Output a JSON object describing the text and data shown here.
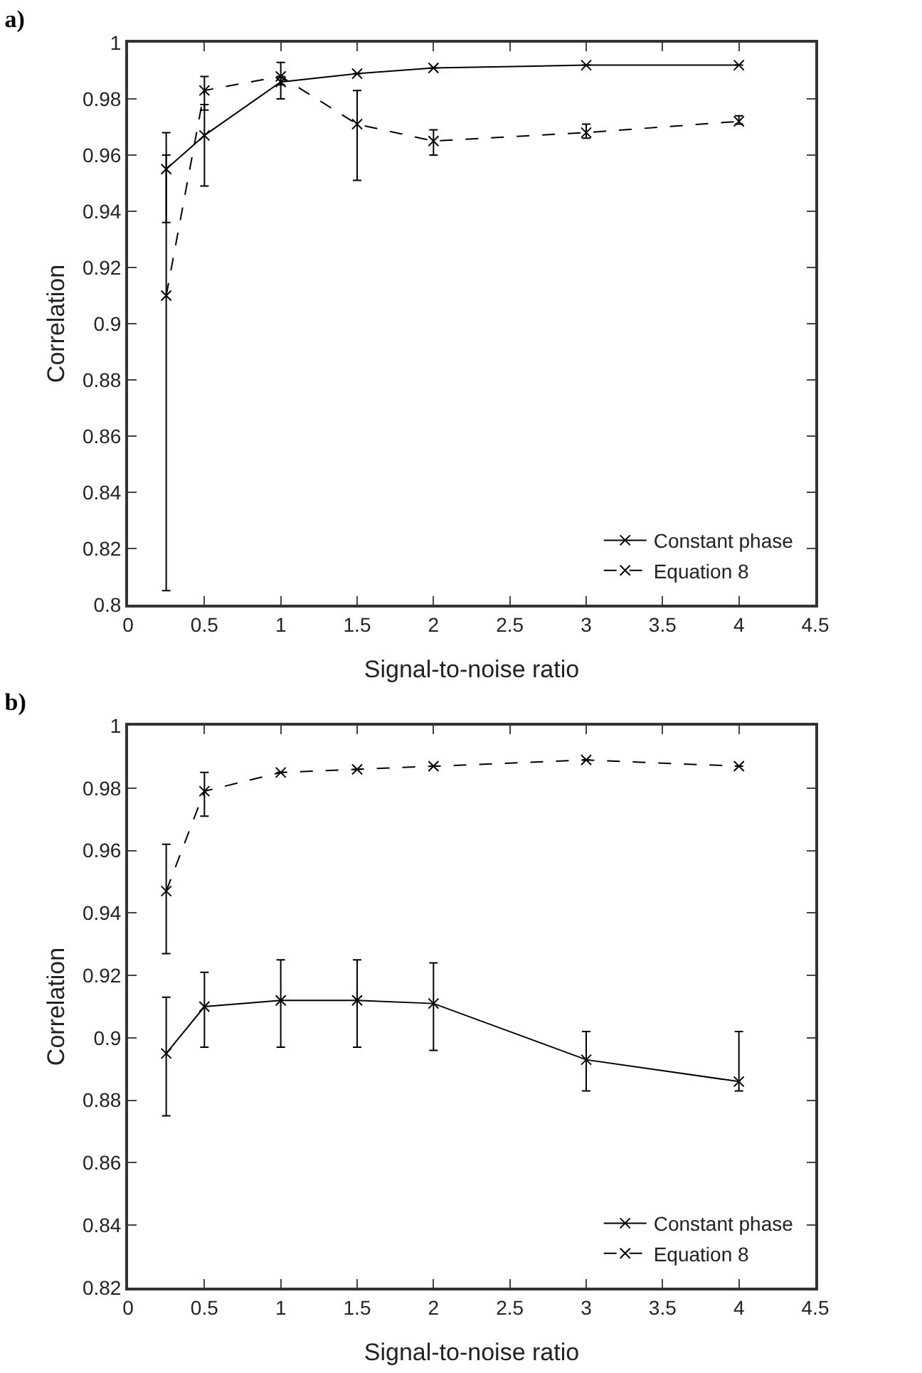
{
  "chart_data": [
    {
      "type": "line",
      "title": "a)",
      "xlabel": "Signal-to-noise ratio",
      "ylabel": "Correlation",
      "xlim": [
        0,
        4.5
      ],
      "xticks": [
        0,
        0.5,
        1,
        1.5,
        2,
        2.5,
        3,
        3.5,
        4,
        4.5
      ],
      "ylim": [
        0.8,
        1
      ],
      "yticks": [
        0.8,
        0.82,
        0.84,
        0.86,
        0.88,
        0.9,
        0.92,
        0.94,
        0.96,
        0.98,
        1
      ],
      "grid": false,
      "legend": "bottom right",
      "x": [
        0.25,
        0.5,
        1,
        1.5,
        2,
        3,
        4
      ],
      "series": [
        {
          "name": "Constant phase",
          "color": "#000000",
          "line_style": "solid",
          "marker": "cross",
          "values": [
            0.955,
            0.967,
            0.986,
            0.989,
            0.991,
            0.992,
            0.992
          ],
          "errors": [
            [
              0.936,
              0.968
            ],
            [
              0.949,
              0.978
            ],
            [
              0.985,
              0.988
            ],
            null,
            null,
            null,
            null
          ]
        },
        {
          "name": "Equation 8",
          "color": "#000000",
          "line_style": "dashed",
          "marker": "cross",
          "values": [
            0.91,
            0.983,
            0.988,
            0.971,
            0.965,
            0.968,
            0.972
          ],
          "errors": [
            [
              0.805,
              0.96
            ],
            [
              0.976,
              0.988
            ],
            [
              0.98,
              0.993
            ],
            [
              0.951,
              0.983
            ],
            [
              0.96,
              0.969
            ],
            [
              0.966,
              0.971
            ],
            [
              0.971,
              0.974
            ]
          ]
        }
      ]
    },
    {
      "type": "line",
      "title": "b)",
      "xlabel": "Signal-to-noise ratio",
      "ylabel": "Correlation",
      "xlim": [
        0,
        4.5
      ],
      "xticks": [
        0,
        0.5,
        1,
        1.5,
        2,
        2.5,
        3,
        3.5,
        4,
        4.5
      ],
      "ylim": [
        0.82,
        1
      ],
      "yticks": [
        0.82,
        0.84,
        0.86,
        0.88,
        0.9,
        0.92,
        0.94,
        0.96,
        0.98,
        1
      ],
      "grid": false,
      "legend": "bottom right",
      "x": [
        0.25,
        0.5,
        1,
        1.5,
        2,
        3,
        4
      ],
      "series": [
        {
          "name": "Constant phase",
          "color": "#000000",
          "line_style": "solid",
          "marker": "cross",
          "values": [
            0.895,
            0.91,
            0.912,
            0.912,
            0.911,
            0.893,
            0.886
          ],
          "errors": [
            [
              0.875,
              0.913
            ],
            [
              0.897,
              0.921
            ],
            [
              0.897,
              0.925
            ],
            [
              0.897,
              0.925
            ],
            [
              0.896,
              0.924
            ],
            [
              0.883,
              0.902
            ],
            [
              0.883,
              0.902
            ]
          ]
        },
        {
          "name": "Equation 8",
          "color": "#000000",
          "line_style": "dashed",
          "marker": "cross",
          "values": [
            0.947,
            0.979,
            0.985,
            0.986,
            0.987,
            0.989,
            0.987
          ],
          "errors": [
            [
              0.927,
              0.962
            ],
            [
              0.971,
              0.985
            ],
            null,
            null,
            null,
            null,
            null
          ]
        }
      ]
    }
  ]
}
